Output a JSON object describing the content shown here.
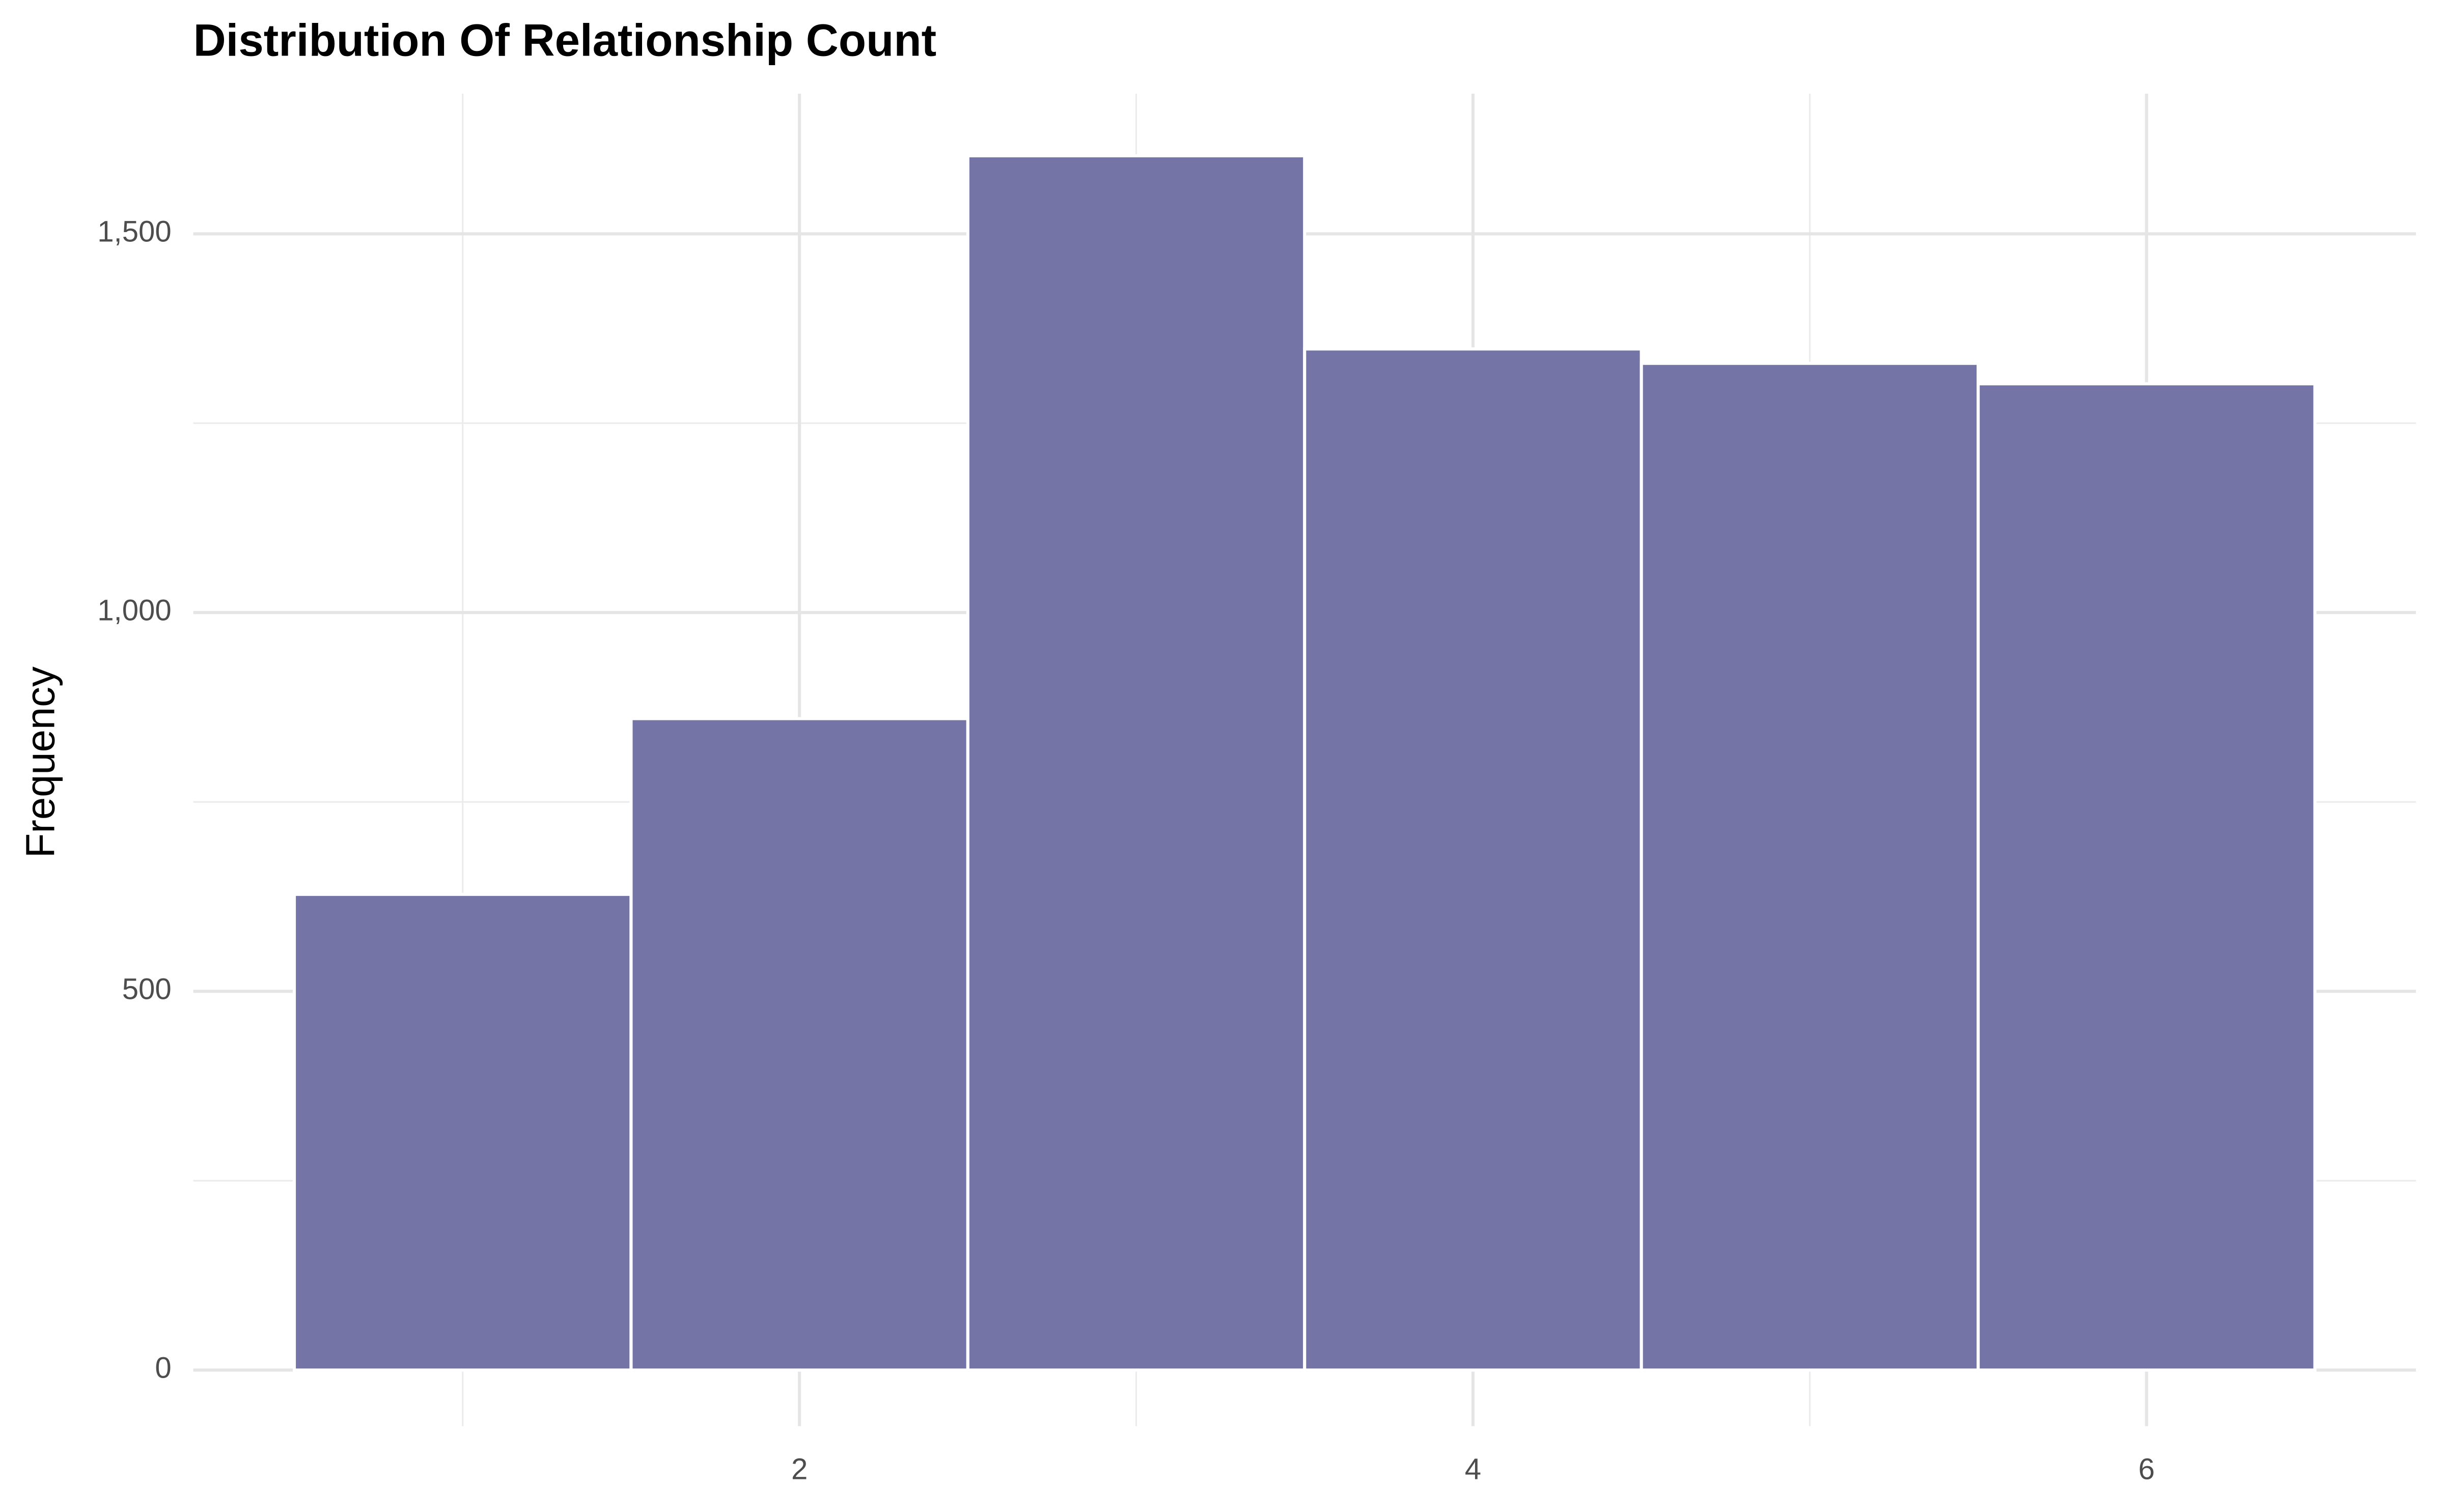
{
  "chart_data": {
    "type": "histogram",
    "title": "Distribution Of Relationship Count",
    "y_label": "Frequency",
    "bins": [
      0.5,
      1.5,
      2.5,
      3.5,
      4.5,
      5.5,
      6.5
    ],
    "values": [
      628,
      860,
      1603,
      1348,
      1329,
      1302
    ],
    "color": "#7574a6",
    "edge_color": "#ffffff",
    "xlim": [
      0.2,
      6.8
    ],
    "xticks": [
      2,
      4,
      6
    ],
    "ylim": [
      -74,
      1685
    ],
    "yticks": [
      0,
      500,
      {
        "value": 1000,
        "label": "1,000"
      },
      {
        "value": 1500,
        "label": "1,500"
      }
    ],
    "grid": true
  }
}
